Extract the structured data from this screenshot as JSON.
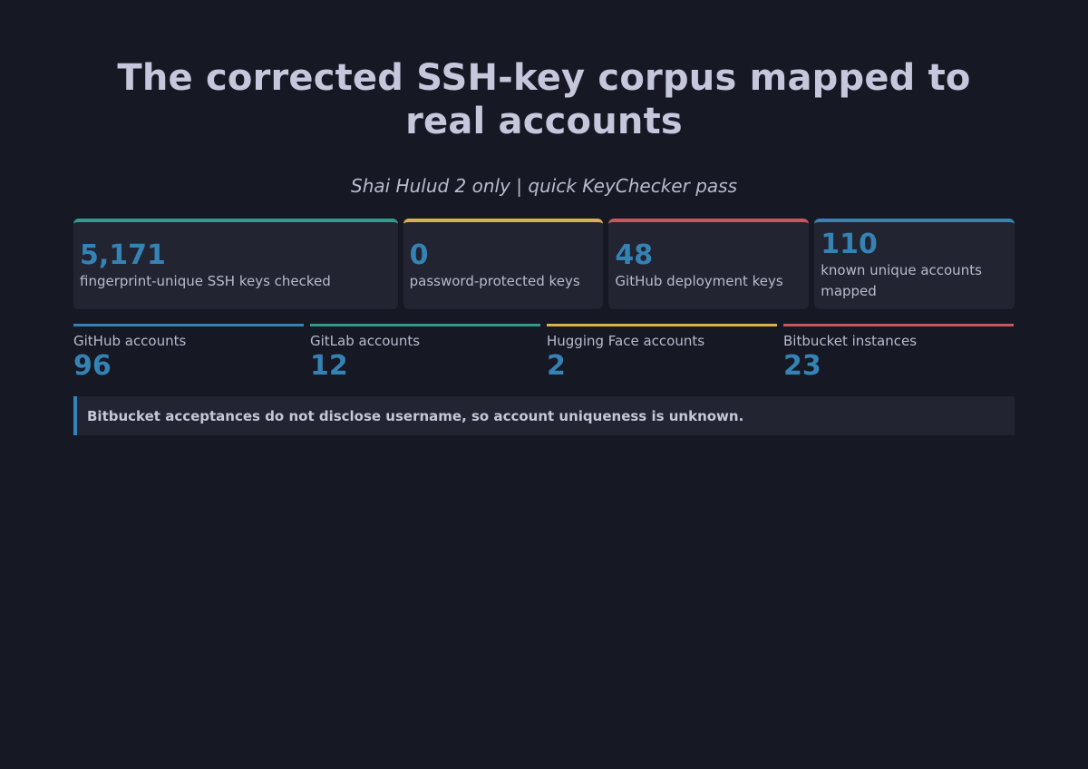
{
  "header": {
    "title": "The corrected SSH-key corpus mapped to real accounts",
    "subtitle": "Shai Hulud 2 only | quick KeyChecker pass"
  },
  "accent_colors": {
    "teal": "#2f9d8e",
    "yellow": "#d9b24a",
    "red": "#c9565e",
    "blue": "#3582b5"
  },
  "cards": [
    {
      "value": "5,171",
      "label": "fingerprint-unique SSH keys checked"
    },
    {
      "value": "0",
      "label": "password-protected keys"
    },
    {
      "value": "48",
      "label": "GitHub deployment keys"
    },
    {
      "value": "110",
      "label": "known unique accounts mapped"
    }
  ],
  "metrics": [
    {
      "label": "GitHub accounts",
      "value": "96"
    },
    {
      "label": "GitLab accounts",
      "value": "12"
    },
    {
      "label": "Hugging Face accounts",
      "value": "2"
    },
    {
      "label": "Bitbucket instances",
      "value": "23"
    }
  ],
  "note": {
    "text": "Bitbucket acceptances do not disclose username, so account uniqueness is unknown."
  }
}
